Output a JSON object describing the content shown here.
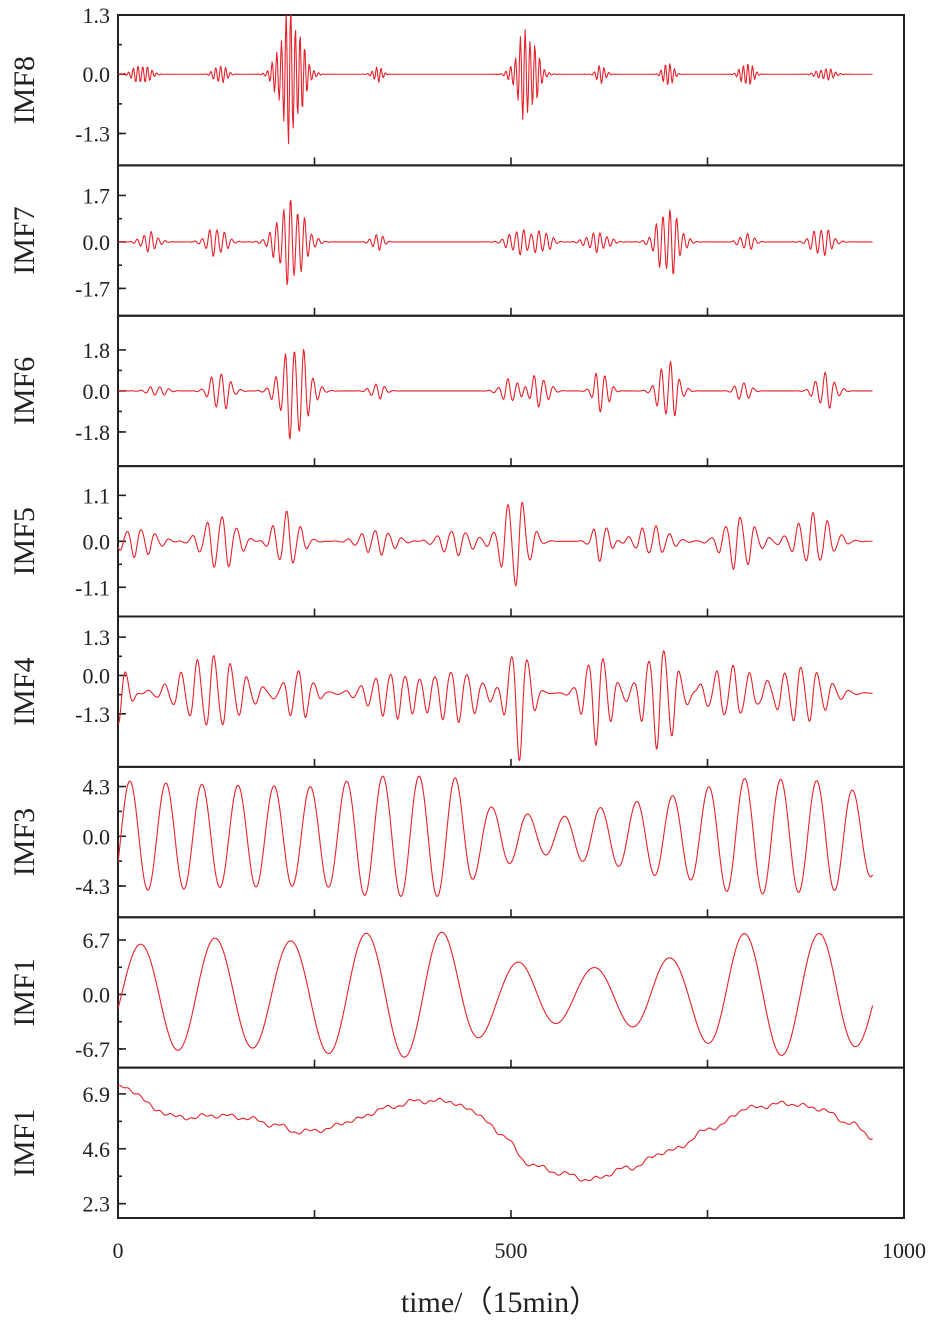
{
  "chart_data": {
    "type": "line",
    "description_layout": "stacked",
    "line_color": "#e8222b",
    "xlabel": "time/（15min）",
    "xlim": [
      0,
      1000
    ],
    "xticks": [
      0,
      500,
      1000
    ],
    "xtick_labels": [
      "0",
      "500",
      "1000"
    ],
    "n_samples": 961,
    "panels": [
      {
        "name": "IMF8",
        "ylim": [
          -2.0,
          1.3
        ],
        "yticks": [
          1.3,
          0.0,
          -1.3
        ],
        "ytick_labels": [
          "1.3",
          "0.0",
          "-1.3"
        ],
        "kind": "bursts",
        "carrier_period": 6,
        "bursts": [
          [
            30,
            0.25,
            14
          ],
          [
            130,
            0.25,
            10
          ],
          [
            220,
            1.6,
            18
          ],
          [
            330,
            0.2,
            8
          ],
          [
            520,
            1.1,
            16
          ],
          [
            615,
            0.22,
            8
          ],
          [
            700,
            0.35,
            8
          ],
          [
            800,
            0.32,
            10
          ],
          [
            900,
            0.15,
            14
          ]
        ]
      },
      {
        "name": "IMF7",
        "ylim": [
          -2.7,
          2.8
        ],
        "yticks": [
          1.7,
          0.0,
          -1.7
        ],
        "ytick_labels": [
          "1.7",
          "0.0",
          "-1.7"
        ],
        "kind": "bursts",
        "carrier_period": 9,
        "bursts": [
          [
            40,
            0.4,
            14
          ],
          [
            125,
            0.6,
            16
          ],
          [
            220,
            1.7,
            22
          ],
          [
            330,
            0.35,
            10
          ],
          [
            510,
            0.5,
            18
          ],
          [
            540,
            0.45,
            14
          ],
          [
            610,
            0.4,
            18
          ],
          [
            700,
            1.4,
            18
          ],
          [
            800,
            0.35,
            12
          ],
          [
            895,
            0.6,
            16
          ]
        ]
      },
      {
        "name": "IMF6",
        "ylim": [
          -3.3,
          3.3
        ],
        "yticks": [
          1.8,
          0.0,
          -1.8
        ],
        "ytick_labels": [
          "1.8",
          "0.0",
          "-1.8"
        ],
        "kind": "bursts",
        "carrier_period": 12,
        "bursts": [
          [
            50,
            0.25,
            16
          ],
          [
            130,
            1.0,
            16
          ],
          [
            225,
            2.4,
            22
          ],
          [
            330,
            0.4,
            12
          ],
          [
            500,
            0.6,
            16
          ],
          [
            535,
            0.8,
            16
          ],
          [
            615,
            1.1,
            12
          ],
          [
            700,
            1.5,
            16
          ],
          [
            795,
            0.5,
            12
          ],
          [
            900,
            0.9,
            16
          ]
        ]
      },
      {
        "name": "IMF5",
        "ylim": [
          -1.8,
          1.8
        ],
        "yticks": [
          1.1,
          0.0,
          -1.1
        ],
        "ytick_labels": [
          "1.1",
          "0.0",
          "-1.1"
        ],
        "kind": "bursts",
        "carrier_period": 18,
        "bursts": [
          [
            25,
            0.4,
            30
          ],
          [
            130,
            0.75,
            28
          ],
          [
            215,
            0.75,
            22
          ],
          [
            330,
            0.35,
            28
          ],
          [
            430,
            0.35,
            28
          ],
          [
            505,
            1.25,
            22
          ],
          [
            615,
            0.55,
            14
          ],
          [
            680,
            0.4,
            28
          ],
          [
            790,
            0.75,
            26
          ],
          [
            885,
            0.7,
            30
          ]
        ]
      },
      {
        "name": "IMF4",
        "ylim": [
          -3.1,
          2.0
        ],
        "yticks": [
          1.3,
          0.0,
          -1.3
        ],
        "ytick_labels": [
          "1.3",
          "0.0",
          "-1.3"
        ],
        "kind": "bursts",
        "carrier_period": 20,
        "offset": -0.6,
        "bursts": [
          [
            5,
            1.2,
            12
          ],
          [
            120,
            1.4,
            50
          ],
          [
            230,
            1.0,
            22
          ],
          [
            350,
            0.9,
            40
          ],
          [
            430,
            1.0,
            40
          ],
          [
            510,
            2.3,
            18
          ],
          [
            610,
            1.8,
            22
          ],
          [
            690,
            2.0,
            28
          ],
          [
            780,
            1.0,
            40
          ],
          [
            870,
            1.1,
            40
          ]
        ]
      },
      {
        "name": "IMF3",
        "ylim": [
          -7.0,
          6.0
        ],
        "yticks": [
          4.3,
          0.0,
          -4.3
        ],
        "ytick_labels": [
          "4.3",
          "0.0",
          "-4.3"
        ],
        "kind": "oscillation",
        "period": 46,
        "phase": -0.5,
        "amp_points": [
          [
            0,
            4.8
          ],
          [
            60,
            4.6
          ],
          [
            150,
            4.4
          ],
          [
            250,
            4.3
          ],
          [
            330,
            5.2
          ],
          [
            420,
            5.2
          ],
          [
            480,
            2.5
          ],
          [
            550,
            1.6
          ],
          [
            620,
            2.5
          ],
          [
            700,
            3.5
          ],
          [
            800,
            5.0
          ],
          [
            900,
            4.8
          ],
          [
            960,
            3.5
          ]
        ]
      },
      {
        "name": "IMF1",
        "ylim": [
          -9.0,
          9.5
        ],
        "yticks": [
          6.7,
          0.0,
          -6.7
        ],
        "ytick_labels": [
          "6.7",
          "0.0",
          "-6.7"
        ],
        "kind": "oscillation",
        "period": 96,
        "phase": -0.3,
        "amp_points": [
          [
            0,
            6.0
          ],
          [
            100,
            7.0
          ],
          [
            200,
            6.5
          ],
          [
            300,
            7.5
          ],
          [
            400,
            7.8
          ],
          [
            500,
            4.0
          ],
          [
            600,
            3.3
          ],
          [
            700,
            4.5
          ],
          [
            800,
            7.5
          ],
          [
            900,
            7.5
          ],
          [
            960,
            6.0
          ]
        ]
      },
      {
        "name": "IMF1",
        "ylim": [
          1.7,
          8.0
        ],
        "yticks": [
          6.9,
          4.6,
          2.3
        ],
        "ytick_labels": [
          "6.9",
          "4.6",
          "2.3"
        ],
        "kind": "trend",
        "trend_points": [
          [
            0,
            7.2
          ],
          [
            20,
            7.0
          ],
          [
            50,
            6.2
          ],
          [
            80,
            5.9
          ],
          [
            130,
            6.0
          ],
          [
            160,
            5.9
          ],
          [
            200,
            5.6
          ],
          [
            230,
            5.3
          ],
          [
            260,
            5.4
          ],
          [
            300,
            5.8
          ],
          [
            340,
            6.3
          ],
          [
            380,
            6.6
          ],
          [
            420,
            6.6
          ],
          [
            450,
            6.2
          ],
          [
            490,
            5.2
          ],
          [
            520,
            4.0
          ],
          [
            560,
            3.6
          ],
          [
            600,
            3.3
          ],
          [
            650,
            3.8
          ],
          [
            700,
            4.5
          ],
          [
            760,
            5.5
          ],
          [
            800,
            6.3
          ],
          [
            850,
            6.5
          ],
          [
            890,
            6.3
          ],
          [
            930,
            5.7
          ],
          [
            960,
            5.1
          ]
        ]
      }
    ]
  }
}
